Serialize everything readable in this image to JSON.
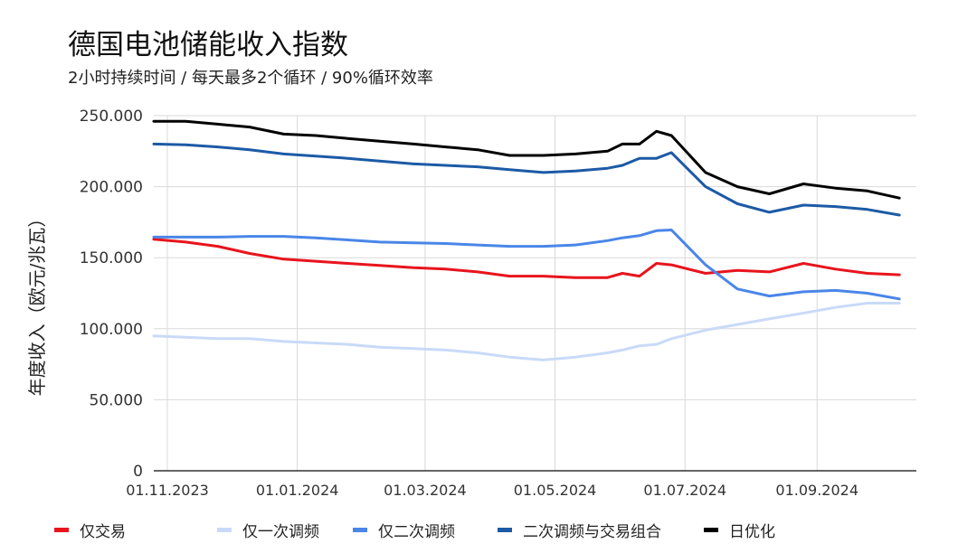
{
  "chart_data": {
    "type": "line",
    "title": "德国电池储能收入指数",
    "subtitle": "2小时持续时间 / 每天最多2个循环 / 90%循环效率",
    "xlabel": "",
    "ylabel": "年度收入（欧元/兆瓦）",
    "ylim": [
      0,
      250000
    ],
    "yticks": [
      0,
      50000,
      100000,
      150000,
      200000,
      250000
    ],
    "ytick_labels": [
      "0",
      "50.000",
      "100.000",
      "150.000",
      "200.000",
      "250.000"
    ],
    "xtick_labels": [
      "01.11.2023",
      "01.01.2024",
      "01.03.2024",
      "01.05.2024",
      "01.07.2024",
      "01.09.2024"
    ],
    "x_days": [
      0,
      15,
      30,
      45,
      61,
      76,
      91,
      106,
      122,
      137,
      152,
      167,
      183,
      198,
      213,
      220,
      228,
      236,
      243,
      259,
      274,
      289,
      305,
      320,
      335,
      350
    ],
    "x_tick_days": [
      0,
      61,
      121,
      182,
      243,
      305
    ],
    "x_range_days": [
      0,
      358
    ],
    "grid": true,
    "legend_position": "bottom",
    "series": [
      {
        "name": "仅交易",
        "color": "#e8141c",
        "values": [
          163000,
          161000,
          158000,
          153000,
          149000,
          147500,
          146000,
          144500,
          143000,
          142000,
          140000,
          137000,
          137000,
          136000,
          136000,
          139000,
          137000,
          146000,
          145000,
          139000,
          141000,
          140000,
          146000,
          142000,
          139000,
          138000
        ]
      },
      {
        "name": "仅一次调频",
        "color": "#c9daf8",
        "values": [
          95000,
          94000,
          93000,
          93000,
          91000,
          90000,
          89000,
          87000,
          86000,
          85000,
          83000,
          80000,
          78000,
          80000,
          83000,
          85000,
          88000,
          89000,
          93000,
          99000,
          103000,
          107000,
          111000,
          115000,
          118000,
          118000
        ]
      },
      {
        "name": "仅二次调频",
        "color": "#4a86e8",
        "values": [
          164500,
          164500,
          164500,
          165000,
          165000,
          164000,
          162500,
          161000,
          160500,
          160000,
          159000,
          158000,
          158000,
          159000,
          162000,
          164000,
          165500,
          169000,
          169500,
          145000,
          128000,
          123000,
          126000,
          127000,
          125000,
          121000
        ]
      },
      {
        "name": "二次调频与交易组合",
        "color": "#1c5aa6",
        "values": [
          230000,
          229500,
          228000,
          226000,
          223000,
          221500,
          220000,
          218000,
          216000,
          215000,
          214000,
          212000,
          210000,
          211000,
          213000,
          215000,
          220000,
          220000,
          224000,
          200000,
          188000,
          182000,
          187000,
          186000,
          184000,
          180000
        ]
      },
      {
        "name": "日优化",
        "color": "#000000",
        "values": [
          246000,
          246000,
          244000,
          242000,
          237000,
          236000,
          234000,
          232000,
          230000,
          228000,
          226000,
          222000,
          222000,
          223000,
          225000,
          230000,
          230000,
          239000,
          236000,
          210000,
          200000,
          195000,
          202000,
          199000,
          197000,
          192000
        ]
      }
    ]
  }
}
